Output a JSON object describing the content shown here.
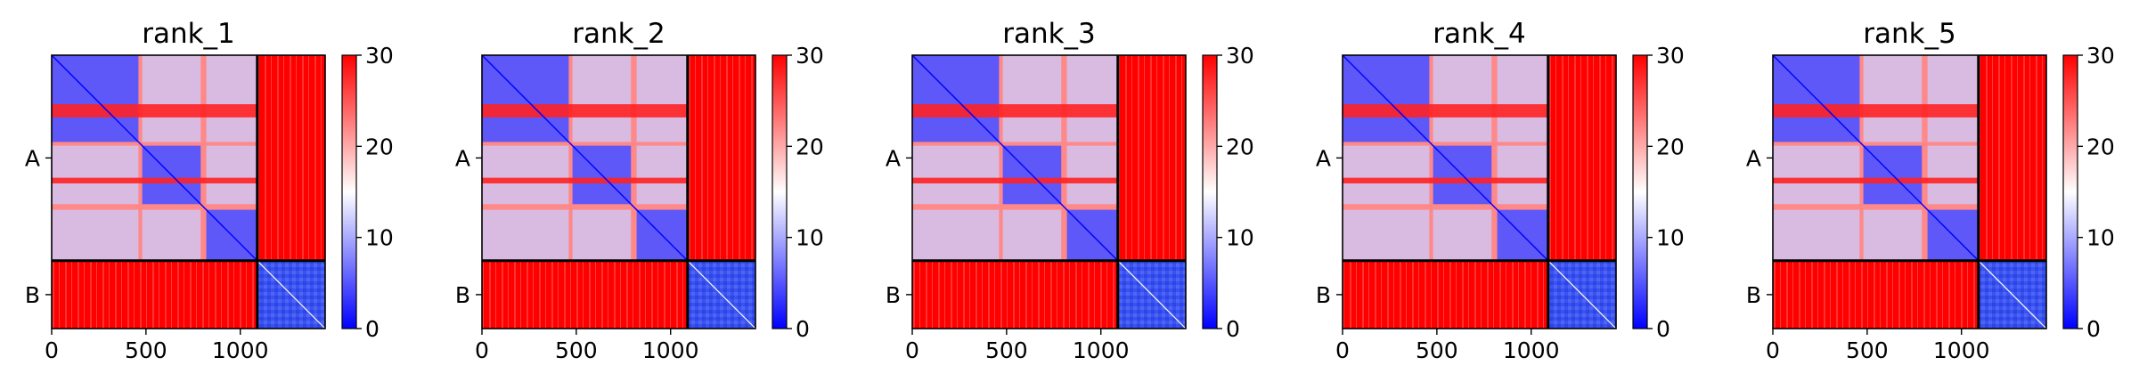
{
  "chart_data": [
    {
      "type": "heatmap",
      "title": "rank_1",
      "xlabel": "",
      "ylabel": "",
      "xlim": [
        0,
        1450
      ],
      "x_ticks": [
        0,
        500,
        1000
      ],
      "y_tick_labels": [
        "A",
        "B"
      ],
      "chain_lengths": {
        "A": 1090,
        "B": 360
      },
      "colorbar": {
        "min": 0,
        "max": 30,
        "ticks": [
          0,
          10,
          20,
          30
        ],
        "colormap": "bwr",
        "low_color": "#0000ff",
        "mid_color": "#ffffff",
        "high_color": "#ff0000"
      },
      "blocks": [
        {
          "name": "A-A",
          "low_error_domains": [
            [
              0,
              460
            ],
            [
              480,
              790
            ],
            [
              820,
              1090
            ]
          ],
          "inter_domain_error": 22
        },
        {
          "name": "A-B",
          "value": 30
        },
        {
          "name": "B-A",
          "value": 30
        },
        {
          "name": "B-B",
          "value": 6
        }
      ]
    },
    {
      "type": "heatmap",
      "title": "rank_2",
      "xlabel": "",
      "ylabel": "",
      "xlim": [
        0,
        1450
      ],
      "x_ticks": [
        0,
        500,
        1000
      ],
      "y_tick_labels": [
        "A",
        "B"
      ],
      "chain_lengths": {
        "A": 1090,
        "B": 360
      },
      "colorbar": {
        "min": 0,
        "max": 30,
        "ticks": [
          0,
          10,
          20,
          30
        ],
        "colormap": "bwr",
        "low_color": "#0000ff",
        "mid_color": "#ffffff",
        "high_color": "#ff0000"
      },
      "blocks": [
        {
          "name": "A-A",
          "low_error_domains": [
            [
              0,
              460
            ],
            [
              480,
              790
            ],
            [
              820,
              1090
            ]
          ],
          "inter_domain_error": 22
        },
        {
          "name": "A-B",
          "value": 30
        },
        {
          "name": "B-A",
          "value": 30
        },
        {
          "name": "B-B",
          "value": 6
        }
      ]
    },
    {
      "type": "heatmap",
      "title": "rank_3",
      "xlabel": "",
      "ylabel": "",
      "xlim": [
        0,
        1450
      ],
      "x_ticks": [
        0,
        500,
        1000
      ],
      "y_tick_labels": [
        "A",
        "B"
      ],
      "chain_lengths": {
        "A": 1090,
        "B": 360
      },
      "colorbar": {
        "min": 0,
        "max": 30,
        "ticks": [
          0,
          10,
          20,
          30
        ],
        "colormap": "bwr",
        "low_color": "#0000ff",
        "mid_color": "#ffffff",
        "high_color": "#ff0000"
      },
      "blocks": [
        {
          "name": "A-A",
          "low_error_domains": [
            [
              0,
              460
            ],
            [
              480,
              790
            ],
            [
              820,
              1090
            ]
          ],
          "inter_domain_error": 22
        },
        {
          "name": "A-B",
          "value": 30
        },
        {
          "name": "B-A",
          "value": 30
        },
        {
          "name": "B-B",
          "value": 6
        }
      ]
    },
    {
      "type": "heatmap",
      "title": "rank_4",
      "xlabel": "",
      "ylabel": "",
      "xlim": [
        0,
        1450
      ],
      "x_ticks": [
        0,
        500,
        1000
      ],
      "y_tick_labels": [
        "A",
        "B"
      ],
      "chain_lengths": {
        "A": 1090,
        "B": 360
      },
      "colorbar": {
        "min": 0,
        "max": 30,
        "ticks": [
          0,
          10,
          20,
          30
        ],
        "colormap": "bwr",
        "low_color": "#0000ff",
        "mid_color": "#ffffff",
        "high_color": "#ff0000"
      },
      "blocks": [
        {
          "name": "A-A",
          "low_error_domains": [
            [
              0,
              460
            ],
            [
              480,
              790
            ],
            [
              820,
              1090
            ]
          ],
          "inter_domain_error": 22
        },
        {
          "name": "A-B",
          "value": 30
        },
        {
          "name": "B-A",
          "value": 30
        },
        {
          "name": "B-B",
          "value": 6
        }
      ]
    },
    {
      "type": "heatmap",
      "title": "rank_5",
      "xlabel": "",
      "ylabel": "",
      "xlim": [
        0,
        1450
      ],
      "x_ticks": [
        0,
        500,
        1000
      ],
      "y_tick_labels": [
        "A",
        "B"
      ],
      "chain_lengths": {
        "A": 1090,
        "B": 360
      },
      "colorbar": {
        "min": 0,
        "max": 30,
        "ticks": [
          0,
          10,
          20,
          30
        ],
        "colormap": "bwr",
        "low_color": "#0000ff",
        "mid_color": "#ffffff",
        "high_color": "#ff0000"
      },
      "blocks": [
        {
          "name": "A-A",
          "low_error_domains": [
            [
              0,
              460
            ],
            [
              480,
              790
            ],
            [
              820,
              1090
            ]
          ],
          "inter_domain_error": 22
        },
        {
          "name": "A-B",
          "value": 30
        },
        {
          "name": "B-A",
          "value": 30
        },
        {
          "name": "B-B",
          "value": 6
        }
      ]
    }
  ]
}
